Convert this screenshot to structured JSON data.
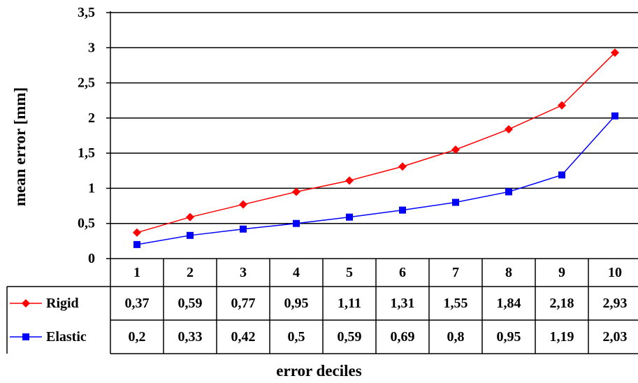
{
  "chart_data": {
    "type": "line",
    "categories": [
      "1",
      "2",
      "3",
      "4",
      "5",
      "6",
      "7",
      "8",
      "9",
      "10"
    ],
    "series": [
      {
        "name": "Rigid",
        "color": "#ff0000",
        "marker": "diamond",
        "values": [
          0.37,
          0.59,
          0.77,
          0.95,
          1.11,
          1.31,
          1.55,
          1.84,
          2.18,
          2.93
        ],
        "labels": [
          "0,37",
          "0,59",
          "0,77",
          "0,95",
          "1,11",
          "1,31",
          "1,55",
          "1,84",
          "2,18",
          "2,93"
        ]
      },
      {
        "name": "Elastic",
        "color": "#0000ff",
        "marker": "square",
        "values": [
          0.2,
          0.33,
          0.42,
          0.5,
          0.59,
          0.69,
          0.8,
          0.95,
          1.19,
          2.03
        ],
        "labels": [
          "0,2",
          "0,33",
          "0,42",
          "0,5",
          "0,59",
          "0,69",
          "0,8",
          "0,95",
          "1,19",
          "2,03"
        ]
      }
    ],
    "yticks": [
      {
        "value": 0,
        "label": "0"
      },
      {
        "value": 0.5,
        "label": "0,5"
      },
      {
        "value": 1,
        "label": "1"
      },
      {
        "value": 1.5,
        "label": "1,5"
      },
      {
        "value": 2,
        "label": "2"
      },
      {
        "value": 2.5,
        "label": "2,5"
      },
      {
        "value": 3,
        "label": "3"
      },
      {
        "value": 3.5,
        "label": "3,5"
      }
    ],
    "ylim": [
      0,
      3.5
    ],
    "ylabel": "mean error [mm]",
    "xlabel": "error deciles",
    "grid": true,
    "legend": "data-table"
  }
}
